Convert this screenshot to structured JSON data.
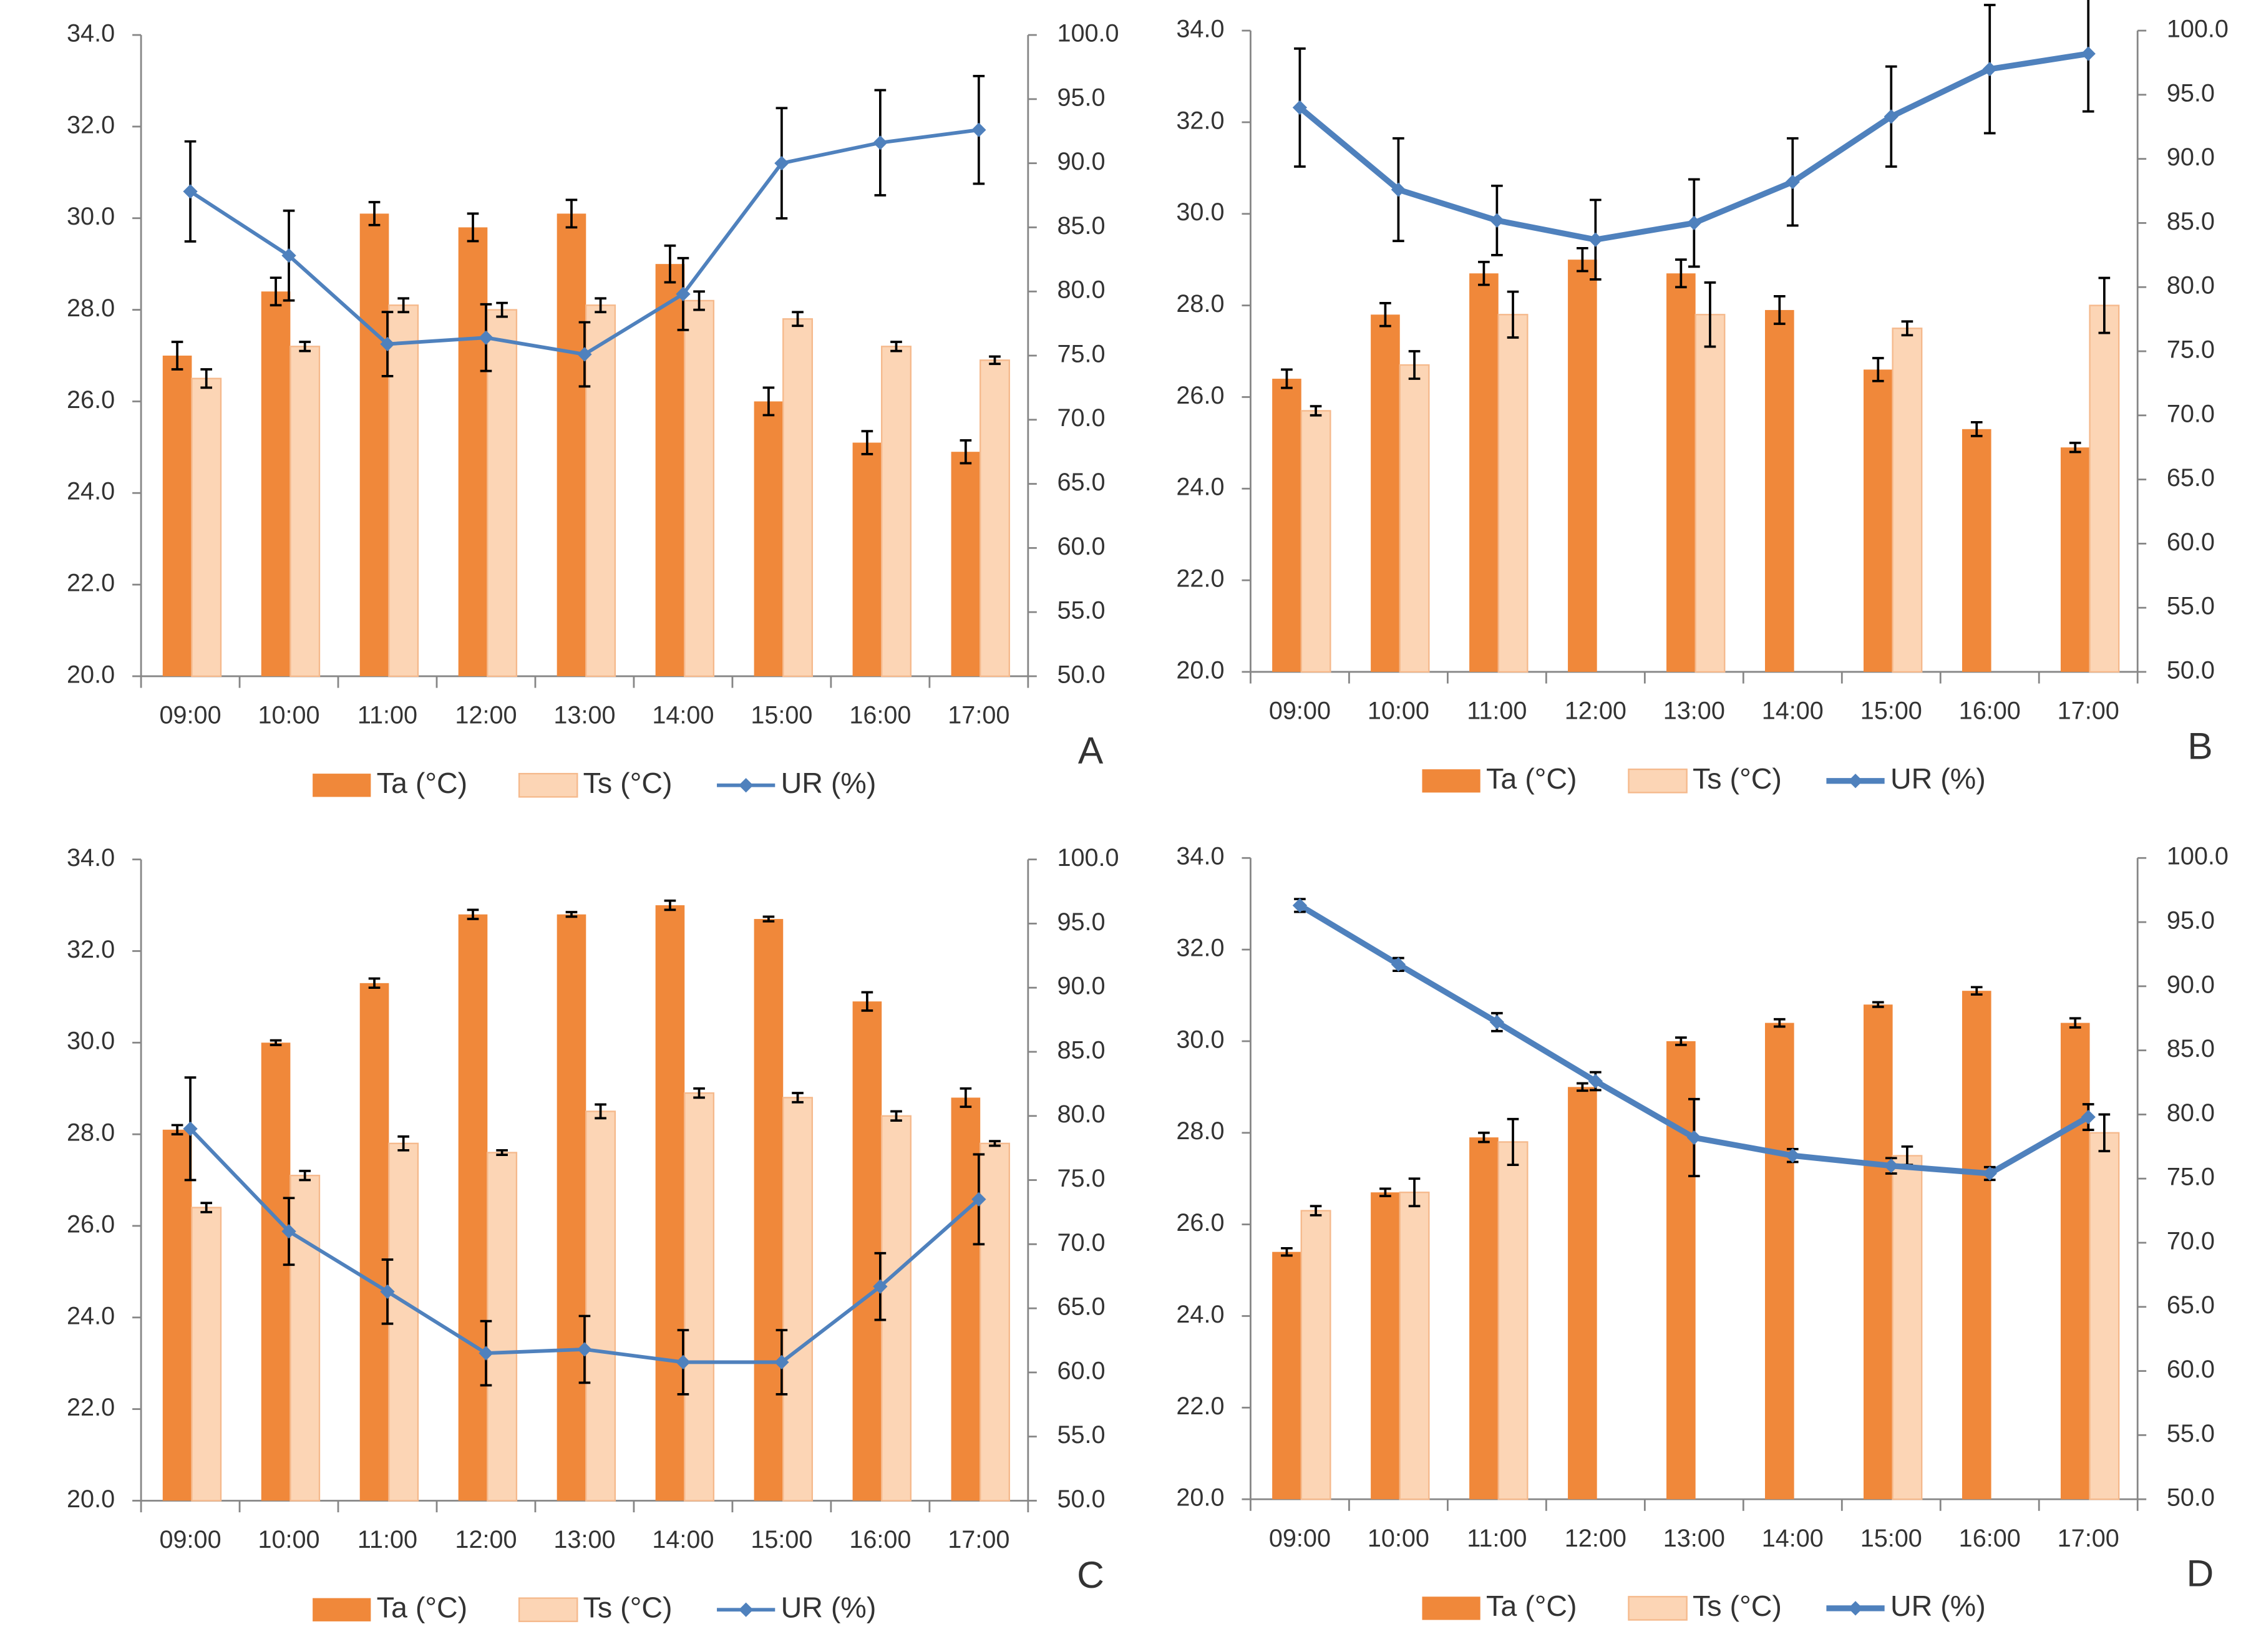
{
  "chart_data": [
    {
      "type": "bar",
      "label": "A",
      "categories": [
        "09:00",
        "10:00",
        "11:00",
        "12:00",
        "13:00",
        "14:00",
        "15:00",
        "16:00",
        "17:00"
      ],
      "ylim": [
        20,
        34
      ],
      "yticks": [
        {
          "value": 20,
          "label": "20.0"
        },
        {
          "value": 22,
          "label": "22.0"
        },
        {
          "value": 24,
          "label": "24.0"
        },
        {
          "value": 26,
          "label": "26.0"
        },
        {
          "value": 28,
          "label": "28.0"
        },
        {
          "value": 30,
          "label": "30.0"
        },
        {
          "value": 32,
          "label": "32.0"
        },
        {
          "value": 34,
          "label": "34.0"
        }
      ],
      "y2lim": [
        50,
        100
      ],
      "y2ticks": [
        {
          "value": 50,
          "label": "50.0"
        },
        {
          "value": 55,
          "label": "55.0"
        },
        {
          "value": 60,
          "label": "60.0"
        },
        {
          "value": 65,
          "label": "65.0"
        },
        {
          "value": 70,
          "label": "70.0"
        },
        {
          "value": 75,
          "label": "75.0"
        },
        {
          "value": 80,
          "label": "80.0"
        },
        {
          "value": 85,
          "label": "85.0"
        },
        {
          "value": 90,
          "label": "90.0"
        },
        {
          "value": 95,
          "label": "95.0"
        },
        {
          "value": 100,
          "label": "100.0"
        }
      ],
      "series": [
        {
          "name": "Ta (°C)",
          "color": "#f0883a",
          "values": [
            27.0,
            28.4,
            30.1,
            29.8,
            30.1,
            29.0,
            26.0,
            25.1,
            24.9
          ],
          "errors": [
            0.3,
            0.3,
            0.25,
            0.3,
            0.3,
            0.4,
            0.3,
            0.25,
            0.25
          ]
        },
        {
          "name": "Ts (°C)",
          "color": "#fcd5b5",
          "values": [
            26.5,
            27.2,
            28.1,
            28.0,
            28.1,
            28.2,
            27.8,
            27.2,
            26.9
          ],
          "errors": [
            0.2,
            0.1,
            0.15,
            0.15,
            0.15,
            0.2,
            0.15,
            0.1,
            0.08
          ]
        },
        {
          "name": "UR (%)",
          "type": "line",
          "axis": "y2",
          "color": "#4f81bd",
          "values": [
            87.8,
            82.8,
            75.9,
            76.4,
            75.1,
            79.8,
            90.0,
            91.6,
            92.6
          ],
          "errors": [
            3.9,
            3.5,
            2.5,
            2.6,
            2.5,
            2.8,
            4.3,
            4.1,
            4.2
          ]
        }
      ]
    },
    {
      "type": "bar",
      "label": "B",
      "categories": [
        "09:00",
        "10:00",
        "11:00",
        "12:00",
        "13:00",
        "14:00",
        "15:00",
        "16:00",
        "17:00"
      ],
      "ylim": [
        20,
        34
      ],
      "yticks": [
        {
          "value": 20,
          "label": "20.0"
        },
        {
          "value": 22,
          "label": "22.0"
        },
        {
          "value": 24,
          "label": "24.0"
        },
        {
          "value": 26,
          "label": "26.0"
        },
        {
          "value": 28,
          "label": "28.0"
        },
        {
          "value": 30,
          "label": "30.0"
        },
        {
          "value": 32,
          "label": "32.0"
        },
        {
          "value": 34,
          "label": "34.0"
        }
      ],
      "y2lim": [
        50,
        100
      ],
      "y2ticks": [
        {
          "value": 50,
          "label": "50.0"
        },
        {
          "value": 55,
          "label": "55.0"
        },
        {
          "value": 60,
          "label": "60.0"
        },
        {
          "value": 65,
          "label": "65.0"
        },
        {
          "value": 70,
          "label": "70.0"
        },
        {
          "value": 75,
          "label": "75.0"
        },
        {
          "value": 80,
          "label": "80.0"
        },
        {
          "value": 85,
          "label": "85.0"
        },
        {
          "value": 90,
          "label": "90.0"
        },
        {
          "value": 95,
          "label": "95.0"
        },
        {
          "value": 100,
          "label": "100.0"
        }
      ],
      "series": [
        {
          "name": "Ta (°C)",
          "color": "#f0883a",
          "values": [
            26.4,
            27.8,
            28.7,
            29.0,
            28.7,
            27.9,
            26.6,
            25.3,
            24.9
          ],
          "errors": [
            0.2,
            0.25,
            0.25,
            0.25,
            0.3,
            0.3,
            0.25,
            0.15,
            0.1
          ]
        },
        {
          "name": "Ts (°C)",
          "color": "#fcd5b5",
          "values": [
            25.7,
            26.7,
            27.8,
            null,
            27.8,
            null,
            27.5,
            null,
            28.0
          ],
          "errors": [
            0.1,
            0.3,
            0.5,
            null,
            0.7,
            null,
            0.15,
            null,
            0.6
          ]
        },
        {
          "name": "UR (%)",
          "type": "line",
          "axis": "y2",
          "color": "#4f81bd",
          "values": [
            94.0,
            87.6,
            85.2,
            83.7,
            85.0,
            88.2,
            93.3,
            97.0,
            98.2
          ],
          "errors": [
            4.6,
            4.0,
            2.7,
            3.1,
            3.4,
            3.4,
            3.9,
            5.0,
            4.5
          ]
        }
      ]
    },
    {
      "type": "bar",
      "label": "C",
      "categories": [
        "09:00",
        "10:00",
        "11:00",
        "12:00",
        "13:00",
        "14:00",
        "15:00",
        "16:00",
        "17:00"
      ],
      "ylim": [
        20,
        34
      ],
      "yticks": [
        {
          "value": 20,
          "label": "20.0"
        },
        {
          "value": 22,
          "label": "22.0"
        },
        {
          "value": 24,
          "label": "24.0"
        },
        {
          "value": 26,
          "label": "26.0"
        },
        {
          "value": 28,
          "label": "28.0"
        },
        {
          "value": 30,
          "label": "30.0"
        },
        {
          "value": 32,
          "label": "32.0"
        },
        {
          "value": 34,
          "label": "34.0"
        }
      ],
      "y2lim": [
        50,
        100
      ],
      "y2ticks": [
        {
          "value": 50,
          "label": "50.0"
        },
        {
          "value": 55,
          "label": "55.0"
        },
        {
          "value": 60,
          "label": "60.0"
        },
        {
          "value": 65,
          "label": "65.0"
        },
        {
          "value": 70,
          "label": "70.0"
        },
        {
          "value": 75,
          "label": "75.0"
        },
        {
          "value": 80,
          "label": "80.0"
        },
        {
          "value": 85,
          "label": "85.0"
        },
        {
          "value": 90,
          "label": "90.0"
        },
        {
          "value": 95,
          "label": "95.0"
        },
        {
          "value": 100,
          "label": "100.0"
        }
      ],
      "series": [
        {
          "name": "Ta (°C)",
          "color": "#f0883a",
          "values": [
            28.1,
            30.0,
            31.3,
            32.8,
            32.8,
            33.0,
            32.7,
            30.9,
            28.8
          ],
          "errors": [
            0.1,
            0.05,
            0.1,
            0.1,
            0.05,
            0.1,
            0.05,
            0.2,
            0.2
          ]
        },
        {
          "name": "Ts (°C)",
          "color": "#fcd5b5",
          "values": [
            26.4,
            27.1,
            27.8,
            27.6,
            28.5,
            28.9,
            28.8,
            28.4,
            27.8
          ],
          "errors": [
            0.1,
            0.1,
            0.15,
            0.05,
            0.15,
            0.1,
            0.1,
            0.1,
            0.05
          ]
        },
        {
          "name": "UR (%)",
          "type": "line",
          "axis": "y2",
          "color": "#4f81bd",
          "values": [
            79.0,
            71.0,
            66.3,
            61.5,
            61.8,
            60.8,
            60.8,
            66.7,
            73.5
          ],
          "errors": [
            4.0,
            2.6,
            2.5,
            2.5,
            2.6,
            2.5,
            2.5,
            2.6,
            3.5
          ]
        }
      ]
    },
    {
      "type": "bar",
      "label": "D",
      "categories": [
        "09:00",
        "10:00",
        "11:00",
        "12:00",
        "13:00",
        "14:00",
        "15:00",
        "16:00",
        "17:00"
      ],
      "ylim": [
        20,
        34
      ],
      "yticks": [
        {
          "value": 20,
          "label": "20.0"
        },
        {
          "value": 22,
          "label": "22.0"
        },
        {
          "value": 24,
          "label": "24.0"
        },
        {
          "value": 26,
          "label": "26.0"
        },
        {
          "value": 28,
          "label": "28.0"
        },
        {
          "value": 30,
          "label": "30.0"
        },
        {
          "value": 32,
          "label": "32.0"
        },
        {
          "value": 34,
          "label": "34.0"
        }
      ],
      "y2lim": [
        50,
        100
      ],
      "y2ticks": [
        {
          "value": 50,
          "label": "50.0"
        },
        {
          "value": 55,
          "label": "55.0"
        },
        {
          "value": 60,
          "label": "60.0"
        },
        {
          "value": 65,
          "label": "65.0"
        },
        {
          "value": 70,
          "label": "70.0"
        },
        {
          "value": 75,
          "label": "75.0"
        },
        {
          "value": 80,
          "label": "80.0"
        },
        {
          "value": 85,
          "label": "85.0"
        },
        {
          "value": 90,
          "label": "90.0"
        },
        {
          "value": 95,
          "label": "95.0"
        },
        {
          "value": 100,
          "label": "100.0"
        }
      ],
      "series": [
        {
          "name": "Ta (°C)",
          "color": "#f0883a",
          "values": [
            25.4,
            26.7,
            27.9,
            29.0,
            30.0,
            30.4,
            30.8,
            31.1,
            30.4
          ],
          "errors": [
            0.08,
            0.08,
            0.1,
            0.08,
            0.08,
            0.08,
            0.05,
            0.08,
            0.1
          ]
        },
        {
          "name": "Ts (°C)",
          "color": "#fcd5b5",
          "values": [
            26.3,
            26.7,
            27.8,
            null,
            null,
            null,
            27.5,
            null,
            28.0
          ],
          "errors": [
            0.1,
            0.3,
            0.5,
            null,
            null,
            null,
            0.2,
            null,
            0.4
          ]
        },
        {
          "name": "UR (%)",
          "type": "line",
          "axis": "y2",
          "color": "#4f81bd",
          "values": [
            96.3,
            91.7,
            87.2,
            82.6,
            78.2,
            76.8,
            76.0,
            75.4,
            79.8
          ],
          "errors": [
            0.5,
            0.5,
            0.7,
            0.7,
            3.0,
            0.5,
            0.6,
            0.5,
            1.0
          ]
        }
      ]
    }
  ]
}
